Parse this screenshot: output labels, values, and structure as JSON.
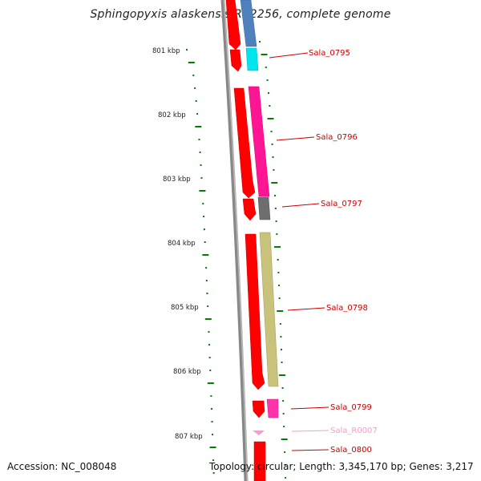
{
  "title": "Sphingopyxis alaskensis RB2256, complete genome",
  "accession": "Accession: NC_008048",
  "topology": "Topology: circular; Length: 3,345,170 bp; Genes: 3,217",
  "kbp_labels": [
    "801 kbp",
    "802 kbp",
    "803 kbp",
    "804 kbp",
    "805 kbp",
    "806 kbp",
    "807 kbp"
  ],
  "genes": [
    {
      "label": "Sala_0795",
      "color": "#cc0000"
    },
    {
      "label": "Sala_0796",
      "color": "#cc0000"
    },
    {
      "label": "Sala_0797",
      "color": "#cc0000"
    },
    {
      "label": "Sala_0798",
      "color": "#cc0000"
    },
    {
      "label": "Sala_0799",
      "color": "#cc0000"
    },
    {
      "label": "Sala_R0007",
      "color": "#ff99cc"
    },
    {
      "label": "Sala_0800",
      "color": "#cc0000"
    }
  ],
  "colors": {
    "gene_red": "#ff0000",
    "blue": "#4f81bd",
    "cyan": "#00e5ee",
    "magenta": "#ff1493",
    "gray": "#6e6e6e",
    "olive": "#c8c27a",
    "pink": "#ff33aa",
    "rna_pink": "#ff99cc",
    "tick_green": "#0a7a0a",
    "backbone": "#808080"
  }
}
